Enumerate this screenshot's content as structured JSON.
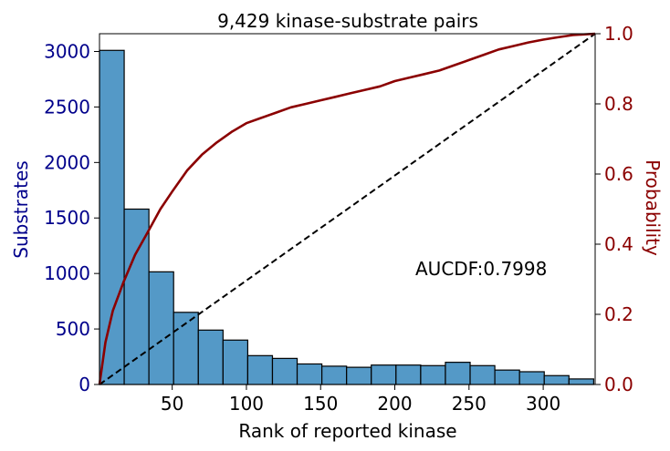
{
  "chart_data": {
    "type": "bar",
    "title": "9,429 kinase-substrate pairs",
    "xlabel": "Rank of reported kinase",
    "ylabel_left": "Substrates",
    "ylabel_right": "Probability",
    "annotation": "AUCDF:0.7998",
    "xlim": [
      1,
      335
    ],
    "ylim_left": [
      0,
      3160
    ],
    "ylim_right": [
      0,
      1.0
    ],
    "x_ticks": [
      50,
      100,
      150,
      200,
      250,
      300
    ],
    "y_ticks_left": [
      0,
      500,
      1000,
      1500,
      2000,
      2500,
      3000
    ],
    "y_ticks_right": [
      0.0,
      0.2,
      0.4,
      0.6,
      0.8,
      1.0
    ],
    "bin_width": 16.65,
    "histogram": [
      3010,
      1580,
      1015,
      650,
      490,
      400,
      260,
      235,
      185,
      165,
      155,
      175,
      175,
      170,
      200,
      170,
      130,
      115,
      80,
      50
    ],
    "cdf": {
      "name": "CDF",
      "x": [
        1,
        5,
        10,
        17,
        25,
        33,
        42,
        50,
        60,
        70,
        80,
        90,
        100,
        110,
        120,
        130,
        140,
        150,
        160,
        170,
        180,
        190,
        200,
        210,
        220,
        230,
        240,
        250,
        260,
        270,
        280,
        290,
        300,
        310,
        320,
        335
      ],
      "y": [
        0.0,
        0.12,
        0.21,
        0.29,
        0.37,
        0.43,
        0.5,
        0.55,
        0.61,
        0.655,
        0.69,
        0.72,
        0.745,
        0.76,
        0.775,
        0.79,
        0.8,
        0.81,
        0.82,
        0.83,
        0.84,
        0.85,
        0.865,
        0.875,
        0.885,
        0.895,
        0.91,
        0.925,
        0.94,
        0.955,
        0.965,
        0.975,
        0.983,
        0.99,
        0.996,
        1.0
      ]
    },
    "reference_line": {
      "name": "uniform",
      "x": [
        1,
        335
      ],
      "y": [
        0.0,
        1.0
      ]
    },
    "colors": {
      "bars": "#5499c7",
      "bar_edge": "#000000",
      "cdf_line": "#8b0000",
      "left_axis_text": "#00008b",
      "right_axis_text": "#8b0000",
      "reference_line": "#000000"
    }
  }
}
